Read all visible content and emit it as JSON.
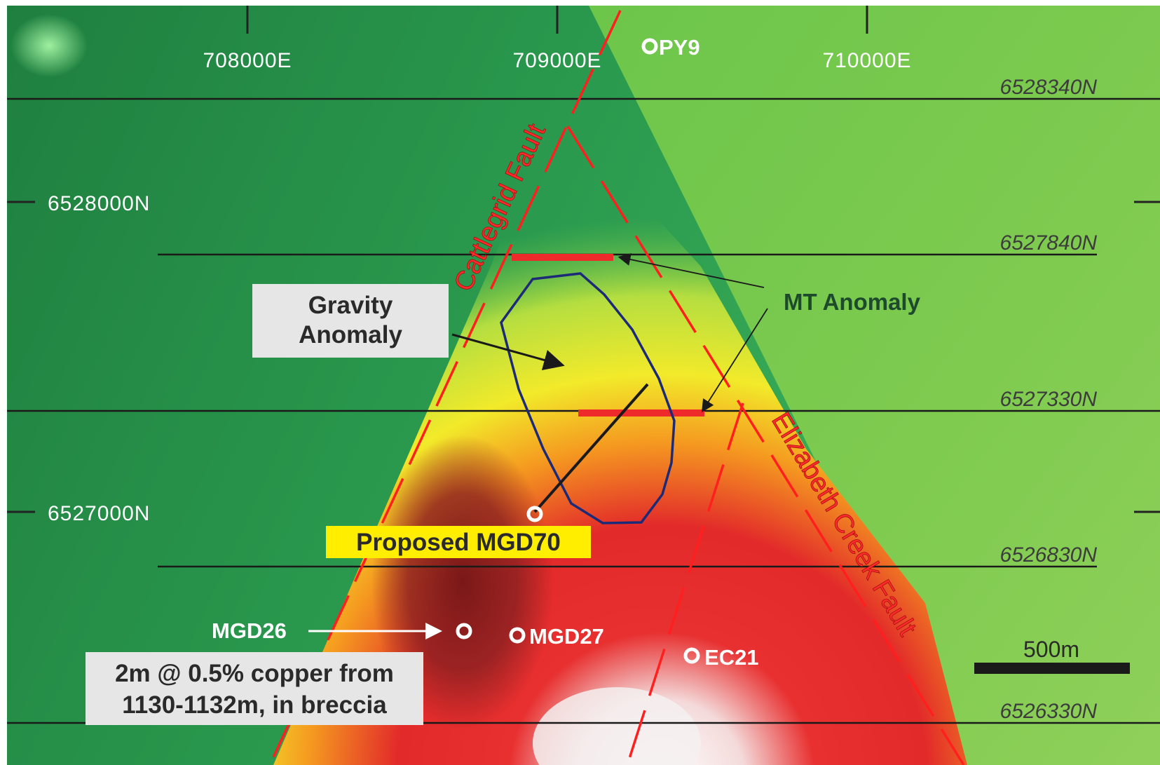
{
  "eastings": [
    "708000E",
    "709000E",
    "710000E"
  ],
  "northings_left": [
    "6528000N",
    "6527000N"
  ],
  "section_lines": [
    "6528340N",
    "6527840N",
    "6527330N",
    "6526830N",
    "6526330N"
  ],
  "faults": {
    "cattlegrid": "Cattlegrid Fault",
    "elizabeth": "Elizabeth Creek Fault"
  },
  "labels": {
    "gravity_anomaly": [
      "Gravity",
      "Anomaly"
    ],
    "mt_anomaly": "MT Anomaly",
    "proposed_hole": "Proposed MGD70",
    "intercept": [
      "2m @ 0.5% copper from",
      "1130-1132m, in breccia"
    ],
    "scale": "500m"
  },
  "drillholes": [
    "PY9",
    "MGD26",
    "MGD27",
    "EC21"
  ],
  "colors": {
    "background_green": "#2e9a4a",
    "fault_red": "#ff2020",
    "anomaly_outline": "#1c2a78",
    "highlight_yellow": "#ffee00"
  }
}
